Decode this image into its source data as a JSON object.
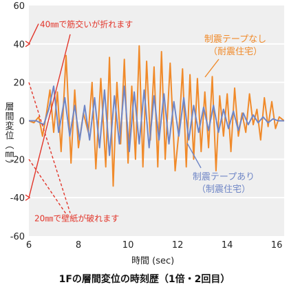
{
  "colors": {
    "plot_background": "#efefef",
    "grid": "#ffffff",
    "orange_series": "#f08a2a",
    "blue_series": "#6f86c6",
    "annotation_red": "#e2352a",
    "text": "#222222"
  },
  "annotations": {
    "break_40": "40㎜で筋交いが折れます",
    "tear_20": "20㎜で壁紙が破れます"
  },
  "caption": "1Fの層間変位の時刻歴（1倍・2回目）",
  "chart_data": {
    "type": "line",
    "title": "",
    "xlabel": "時間 (sec)",
    "ylabel": "層間変位（㎜）",
    "xlim": [
      6,
      16.3
    ],
    "ylim": [
      -60,
      60
    ],
    "xticks": [
      6,
      8,
      10,
      12,
      14,
      16
    ],
    "yticks": [
      60,
      40,
      20,
      0,
      -20,
      -40,
      -60
    ],
    "grid": true,
    "legend_placement": "labels on plot",
    "series": [
      {
        "name": "制震テープなし（耐震住宅）",
        "label_lines": [
          "制震テープなし",
          "（耐震住宅）"
        ],
        "color": "#f08a2a",
        "x": [
          6.0,
          6.2,
          6.4,
          6.55,
          6.7,
          6.85,
          7.0,
          7.15,
          7.3,
          7.5,
          7.7,
          7.85,
          8.0,
          8.2,
          8.4,
          8.55,
          8.7,
          8.9,
          9.1,
          9.25,
          9.4,
          9.55,
          9.7,
          9.85,
          10.0,
          10.15,
          10.3,
          10.45,
          10.6,
          10.75,
          10.9,
          11.05,
          11.2,
          11.35,
          11.5,
          11.7,
          11.9,
          12.05,
          12.2,
          12.35,
          12.5,
          12.65,
          12.8,
          12.95,
          13.1,
          13.25,
          13.4,
          13.55,
          13.7,
          13.85,
          14.0,
          14.15,
          14.3,
          14.45,
          14.6,
          14.75,
          14.9,
          15.05,
          15.2,
          15.35,
          15.5,
          15.65,
          15.8,
          15.95,
          16.1,
          16.3
        ],
        "y": [
          0,
          -1,
          2,
          -8,
          3,
          16,
          -6,
          15,
          -16,
          34,
          -22,
          16,
          -14,
          4,
          -6,
          20,
          -25,
          22,
          -24,
          33,
          -34,
          20,
          -12,
          32,
          -22,
          18,
          -20,
          39,
          -24,
          31,
          -10,
          28,
          -24,
          36,
          -20,
          30,
          -26,
          -6,
          27,
          -24,
          24,
          -20,
          22,
          -16,
          15,
          -14,
          23,
          -26,
          13,
          -8,
          14,
          -16,
          17,
          -8,
          4,
          -6,
          14,
          -2,
          6,
          -10,
          12,
          -3,
          10,
          -4,
          2,
          0
        ]
      },
      {
        "name": "制震テープあり（制震住宅）",
        "label_lines": [
          "制震テープあり",
          "（制震住宅）"
        ],
        "color": "#6f86c6",
        "x": [
          6.0,
          6.3,
          6.6,
          6.8,
          7.0,
          7.2,
          7.45,
          7.65,
          7.85,
          8.05,
          8.25,
          8.45,
          8.65,
          8.85,
          9.05,
          9.25,
          9.45,
          9.65,
          9.85,
          10.05,
          10.25,
          10.45,
          10.65,
          10.85,
          11.05,
          11.25,
          11.45,
          11.65,
          11.85,
          12.05,
          12.25,
          12.45,
          12.65,
          12.85,
          13.05,
          13.25,
          13.45,
          13.65,
          13.85,
          14.05,
          14.25,
          14.45,
          14.65,
          14.85,
          15.05,
          15.25,
          15.45,
          15.65,
          15.85,
          16.05,
          16.3
        ],
        "y": [
          0,
          0,
          -2,
          6,
          18,
          -6,
          12,
          -8,
          8,
          -10,
          8,
          -10,
          12,
          -14,
          16,
          -18,
          13,
          -12,
          18,
          -16,
          15,
          -12,
          16,
          -14,
          13,
          -10,
          14,
          -12,
          10,
          -8,
          12,
          -10,
          8,
          -6,
          7,
          -5,
          8,
          -6,
          6,
          -4,
          5,
          -5,
          4,
          -2,
          3,
          -1,
          2,
          -1,
          1,
          0,
          0
        ]
      }
    ]
  }
}
